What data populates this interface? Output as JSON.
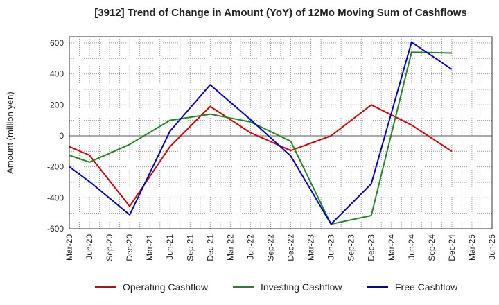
{
  "chart_data": {
    "type": "line",
    "title": "[3912]  Trend of Change in Amount (YoY) of 12Mo Moving Sum of Cashflows",
    "xlabel": "",
    "ylabel": "Amount (million yen)",
    "ylim": [
      -600,
      640
    ],
    "yticks": [
      600,
      400,
      200,
      0,
      -200,
      -400,
      -600
    ],
    "grid": true,
    "legend_position": "bottom",
    "categories": [
      "Mar-20",
      "Jun-20",
      "Sep-20",
      "Dec-20",
      "Mar-21",
      "Jun-21",
      "Sep-21",
      "Dec-21",
      "Mar-22",
      "Jun-22",
      "Sep-22",
      "Dec-22",
      "Mar-23",
      "Jun-23",
      "Sep-23",
      "Dec-23",
      "Mar-24",
      "Jun-24",
      "Sep-24",
      "Dec-24",
      "Mar-25",
      "Jun-25"
    ],
    "series": [
      {
        "name": "Operating Cashflow",
        "color": "#dd0000",
        "values": [
          -70,
          -125,
          null,
          -455,
          null,
          -70,
          null,
          190,
          null,
          20,
          null,
          -95,
          null,
          0,
          null,
          200,
          null,
          70,
          null,
          -100,
          null,
          null
        ]
      },
      {
        "name": "Investing Cashflow",
        "color": "#228822",
        "values": [
          -125,
          -170,
          null,
          -55,
          null,
          100,
          null,
          140,
          null,
          90,
          null,
          -35,
          null,
          -570,
          null,
          -515,
          null,
          540,
          null,
          535,
          null,
          null
        ]
      },
      {
        "name": "Free Cashflow",
        "color": "#0000cc",
        "values": [
          -200,
          -295,
          null,
          -510,
          null,
          30,
          null,
          330,
          null,
          105,
          null,
          -130,
          null,
          -570,
          null,
          -310,
          null,
          605,
          null,
          430,
          null,
          null
        ]
      }
    ]
  }
}
